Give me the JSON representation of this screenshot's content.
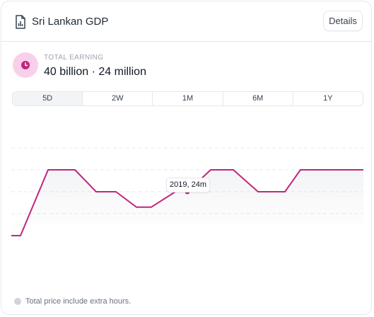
{
  "header": {
    "title": "Sri Lankan GDP",
    "details_label": "Details"
  },
  "summary": {
    "label": "TOTAL EARNING",
    "value": "40 billion · 24 million"
  },
  "tabs": [
    "5D",
    "2W",
    "1M",
    "6M",
    "1Y"
  ],
  "tooltip": {
    "text": "2019, 24m"
  },
  "footer": {
    "note": "Total price include extra hours."
  },
  "colors": {
    "accent": "#c0267e",
    "accent_light": "#f9d0ea"
  },
  "icons": {
    "title": "document-chart-icon",
    "summary": "clock-icon",
    "footer": "info-icon"
  },
  "chart_data": {
    "type": "line",
    "series": [
      {
        "values": [
          1,
          1,
          4,
          4,
          3,
          3,
          2.3,
          2.3,
          3,
          3,
          4,
          4,
          3,
          3,
          4,
          4
        ]
      }
    ],
    "ylim": [
      0,
      6
    ],
    "grid": true,
    "highlight_index": 8
  }
}
